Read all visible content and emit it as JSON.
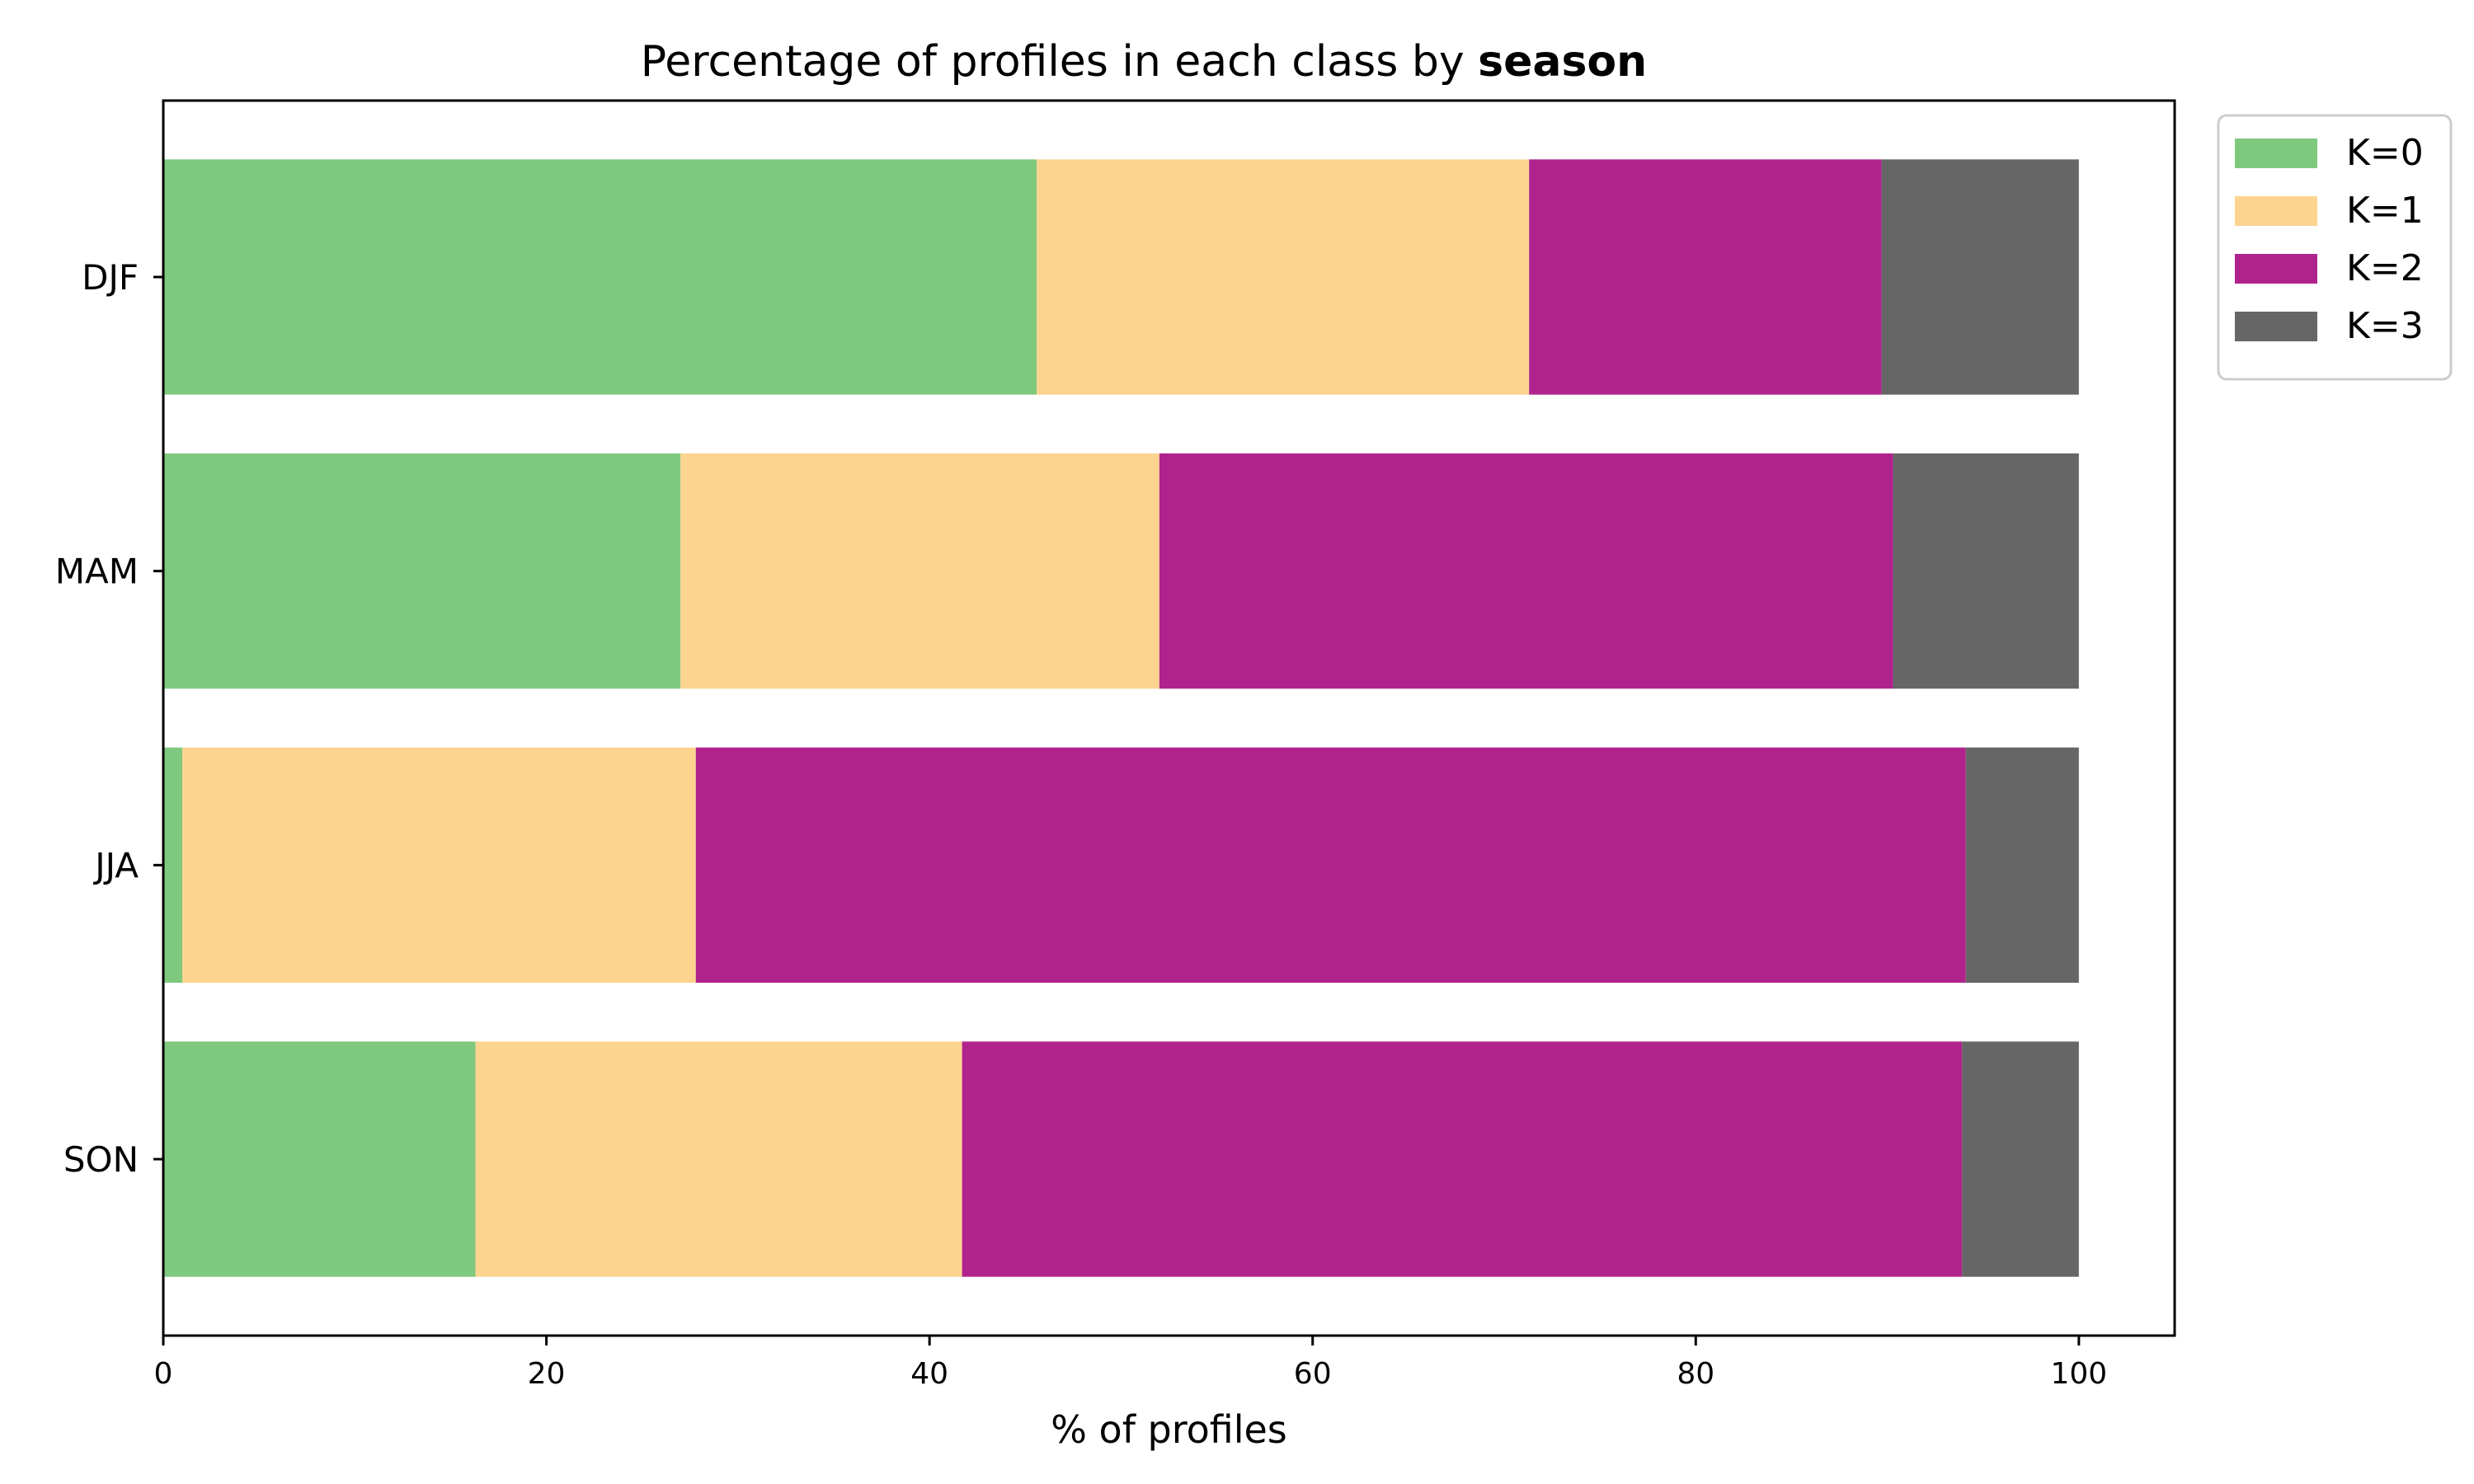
{
  "chart_data": {
    "type": "bar",
    "orientation": "horizontal",
    "stacked": true,
    "title_prefix": "Percentage of profiles in each class by ",
    "title_bold": "season",
    "xlabel": "% of profiles",
    "ylabel": "",
    "xlim": [
      0,
      105
    ],
    "xticks": [
      0,
      20,
      40,
      60,
      80,
      100
    ],
    "categories": [
      "DJF",
      "MAM",
      "JJA",
      "SON"
    ],
    "series": [
      {
        "name": "K=0",
        "color": "#7fc97f",
        "values": [
          45.6,
          27.0,
          1.0,
          16.3
        ]
      },
      {
        "name": "K=1",
        "color": "#fdd48f",
        "values": [
          25.7,
          25.0,
          26.8,
          25.4
        ]
      },
      {
        "name": "K=2",
        "color": "#b0238c",
        "values": [
          18.4,
          38.3,
          66.3,
          52.2
        ]
      },
      {
        "name": "K=3",
        "color": "#666666",
        "values": [
          10.3,
          9.7,
          5.9,
          6.1
        ]
      }
    ],
    "grid": false,
    "legend_position": "outside upper-right"
  }
}
